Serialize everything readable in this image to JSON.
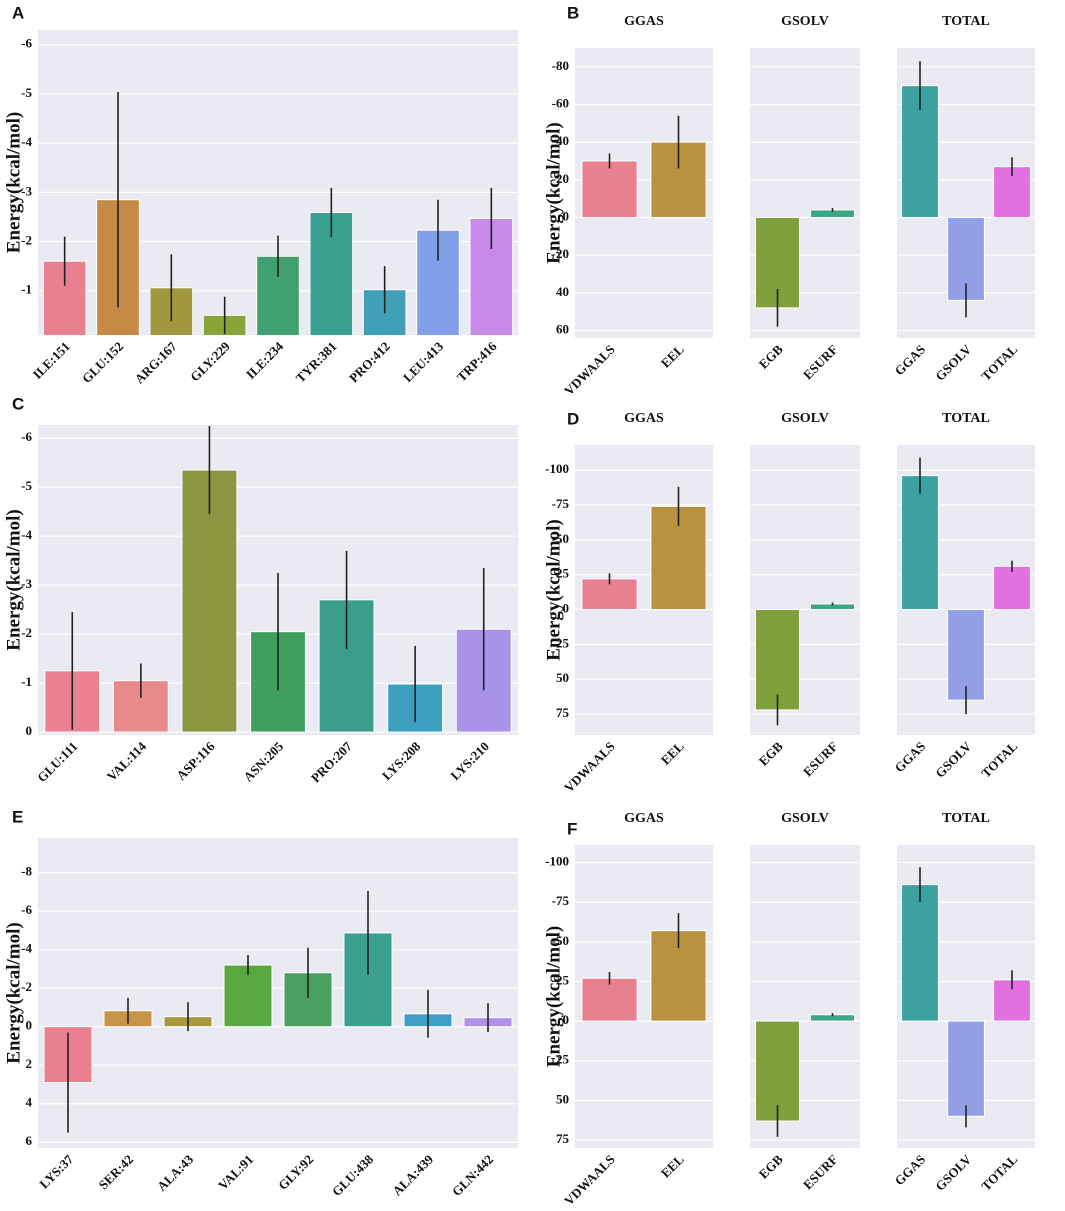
{
  "chart_data": [
    {
      "type": "bar",
      "panel": "A",
      "ylabel": "Energy(kcal/mol)",
      "categories": [
        "ILE:151",
        "GLU:152",
        "ARG:167",
        "GLY:229",
        "ILE:234",
        "TYR:381",
        "PRO:412",
        "LEU:413",
        "TRP:416"
      ],
      "values": [
        -1.6,
        -2.85,
        -1.06,
        -0.5,
        -1.7,
        -2.59,
        -1.02,
        -2.23,
        -2.47
      ],
      "errors": [
        0.5,
        2.19,
        0.68,
        0.38,
        0.42,
        0.5,
        0.48,
        0.62,
        0.62
      ],
      "colors": [
        "#e8808f",
        "#c58b46",
        "#a0973e",
        "#88a53a",
        "#40a070",
        "#3aa090",
        "#40a0b8",
        "#7fa0e8",
        "#c88ae8"
      ],
      "ylim": [
        -0.1,
        -6.3
      ],
      "yticks": [
        -1,
        -2,
        -3,
        -4,
        -5,
        -6
      ],
      "grid": true
    },
    {
      "type": "faceted_bar",
      "panel": "B",
      "ylabel": "Energy(kcal/mol)",
      "facets": [
        {
          "title": "GGAS",
          "categories": [
            "VDWAALS",
            "EEL"
          ],
          "values": [
            -30,
            -40
          ],
          "errors": [
            4,
            14
          ],
          "colors": [
            "#e8808f",
            "#b8923e"
          ]
        },
        {
          "title": "GSOLV",
          "categories": [
            "EGB",
            "ESURF"
          ],
          "values": [
            48,
            -4
          ],
          "errors": [
            10,
            1
          ],
          "colors": [
            "#7fa03a",
            "#3aa885"
          ]
        },
        {
          "title": "TOTAL",
          "categories": [
            "GGAS",
            "GSOLV",
            "TOTAL"
          ],
          "values": [
            -70,
            44,
            -27
          ],
          "errors": [
            13,
            9,
            5
          ],
          "colors": [
            "#3aa0a0",
            "#93a0e8",
            "#e270e0"
          ]
        }
      ],
      "ylim": [
        64,
        -90
      ],
      "yticks": [
        60,
        40,
        20,
        0,
        -20,
        -40,
        -60,
        -80
      ],
      "grid": true
    },
    {
      "type": "bar",
      "panel": "C",
      "ylabel": "Energy(kcal/mol)",
      "categories": [
        "GLU:111",
        "VAL:114",
        "ASP:116",
        "ASN:205",
        "PRO:207",
        "LYS:208",
        "LYS:210"
      ],
      "values": [
        -1.25,
        -1.05,
        -5.35,
        -2.05,
        -2.7,
        -0.98,
        -2.1
      ],
      "errors": [
        1.2,
        0.35,
        0.9,
        1.2,
        1.0,
        0.78,
        1.25
      ],
      "colors": [
        "#ea8090",
        "#e98a8a",
        "#8c9640",
        "#40a060",
        "#3a9e8a",
        "#3ea0c0",
        "#a893e8"
      ],
      "ylim": [
        0.06,
        -6.27
      ],
      "yticks": [
        0,
        -1,
        -2,
        -3,
        -4,
        -5,
        -6
      ],
      "grid": true
    },
    {
      "type": "faceted_bar",
      "panel": "D",
      "ylabel": "Energy(kcal/mol)",
      "facets": [
        {
          "title": "GGAS",
          "categories": [
            "VDWAALS",
            "EEL"
          ],
          "values": [
            -22,
            -74
          ],
          "errors": [
            4,
            14
          ],
          "colors": [
            "#e8808f",
            "#b8923e"
          ]
        },
        {
          "title": "GSOLV",
          "categories": [
            "EGB",
            "ESURF"
          ],
          "values": [
            72,
            -4
          ],
          "errors": [
            11,
            1
          ],
          "colors": [
            "#7fa03a",
            "#3aa885"
          ]
        },
        {
          "title": "TOTAL",
          "categories": [
            "GGAS",
            "GSOLV",
            "TOTAL"
          ],
          "values": [
            -96,
            65,
            -31
          ],
          "errors": [
            13,
            10,
            4
          ],
          "colors": [
            "#3aa0a0",
            "#93a0e8",
            "#e270e0"
          ]
        }
      ],
      "ylim": [
        90,
        -118
      ],
      "yticks": [
        75,
        50,
        25,
        0,
        -25,
        -50,
        -75,
        -100
      ],
      "grid": true
    },
    {
      "type": "bar",
      "panel": "E",
      "ylabel": "Energy(kcal/mol)",
      "categories": [
        "LYS:37",
        "SER:42",
        "ALA:43",
        "VAL:91",
        "GLY:92",
        "GLU:438",
        "ALA:439",
        "GLN:442"
      ],
      "values": [
        2.9,
        -0.83,
        -0.52,
        -3.2,
        -2.8,
        -4.87,
        -0.67,
        -0.47
      ],
      "errors": [
        2.6,
        0.67,
        0.75,
        0.52,
        1.3,
        2.18,
        1.24,
        0.75
      ],
      "colors": [
        "#e8808f",
        "#c8944a",
        "#a89a3c",
        "#58a840",
        "#4aa060",
        "#3aa090",
        "#40a0c8",
        "#b090e8"
      ],
      "ylim": [
        6.3,
        -9.8
      ],
      "yticks": [
        6,
        4,
        2,
        0,
        -2,
        -4,
        -6,
        -8
      ],
      "grid": true
    },
    {
      "type": "faceted_bar",
      "panel": "F",
      "ylabel": "Energy(kcal/mol)",
      "facets": [
        {
          "title": "GGAS",
          "categories": [
            "VDWAALS",
            "EEL"
          ],
          "values": [
            -27,
            -57
          ],
          "errors": [
            4,
            11
          ],
          "colors": [
            "#e8808f",
            "#b8923e"
          ]
        },
        {
          "title": "GSOLV",
          "categories": [
            "EGB",
            "ESURF"
          ],
          "values": [
            63,
            -4
          ],
          "errors": [
            10,
            1
          ],
          "colors": [
            "#7fa03a",
            "#3aa885"
          ]
        },
        {
          "title": "TOTAL",
          "categories": [
            "GGAS",
            "GSOLV",
            "TOTAL"
          ],
          "values": [
            -86,
            60,
            -26
          ],
          "errors": [
            11,
            7,
            6
          ],
          "colors": [
            "#3aa0a0",
            "#93a0e8",
            "#e270e0"
          ]
        }
      ],
      "ylim": [
        80,
        -111
      ],
      "yticks": [
        75,
        50,
        25,
        0,
        -25,
        -50,
        -75,
        -100
      ],
      "grid": true
    }
  ]
}
